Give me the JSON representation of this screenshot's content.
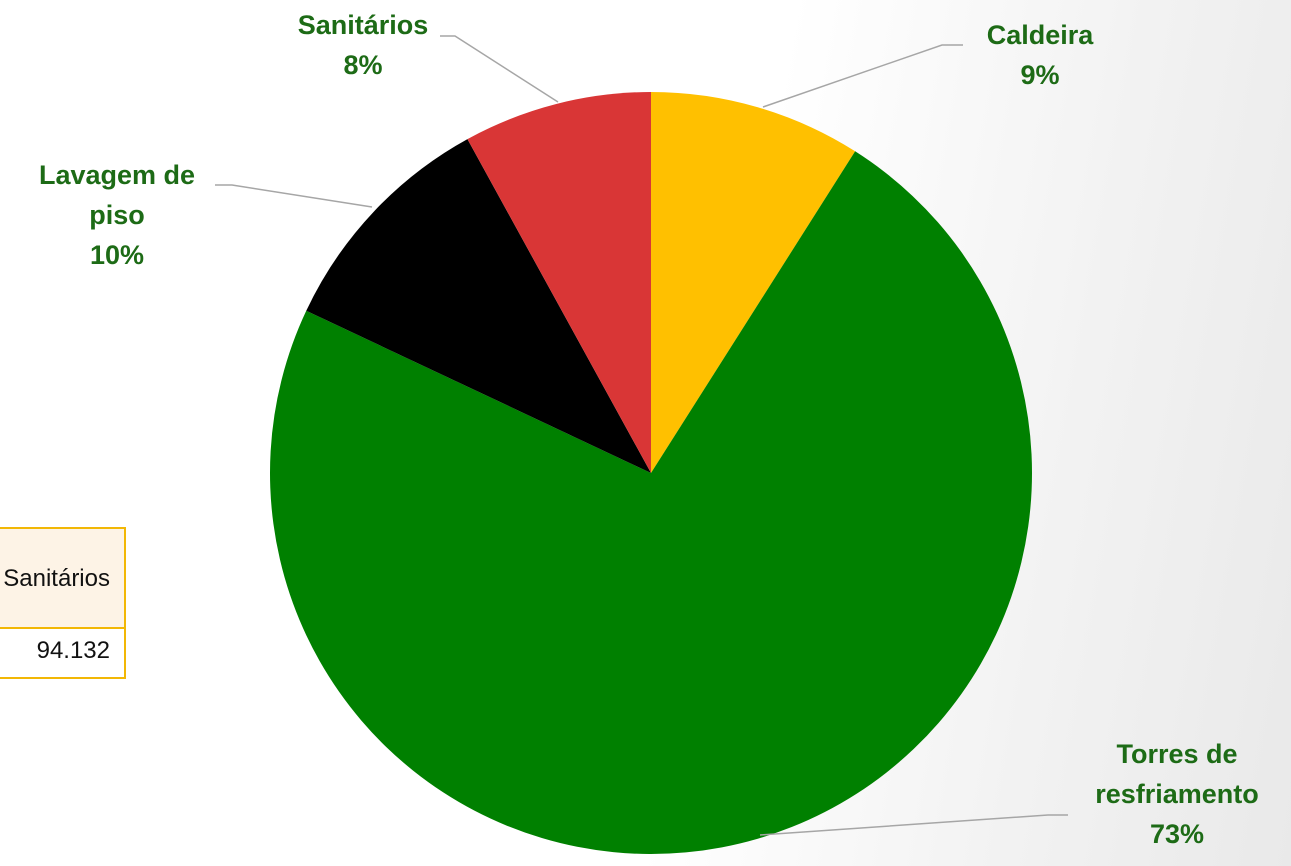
{
  "table": {
    "header_cell": "Sanitários",
    "value_cell": "94.132"
  },
  "colors": {
    "Caldeira": "#FFC000",
    "Torres de resfriamento": "#008000",
    "Lavagem de piso": "#000000",
    "Sanitários": "#D93636",
    "label_text": "#1D6B16",
    "leader_line": "#A6A6A6",
    "table_border": "#F2B705",
    "table_header_fill": "#FDF3E6"
  },
  "chart_data": {
    "type": "pie",
    "title": "",
    "slices": [
      {
        "label": "Caldeira",
        "label_lines": [
          "Caldeira"
        ],
        "percent_label": "9%",
        "value": 9
      },
      {
        "label": "Torres de resfriamento",
        "label_lines": [
          "Torres de",
          "resfriamento"
        ],
        "percent_label": "73%",
        "value": 73
      },
      {
        "label": "Lavagem de piso",
        "label_lines": [
          "Lavagem de",
          "piso"
        ],
        "percent_label": "10%",
        "value": 10
      },
      {
        "label": "Sanitários",
        "label_lines": [
          "Sanitários"
        ],
        "percent_label": "8%",
        "value": 8
      }
    ],
    "start_angle": "12 o'clock",
    "direction": "clockwise",
    "legend": "none",
    "data_labels": "outside with leader lines"
  }
}
